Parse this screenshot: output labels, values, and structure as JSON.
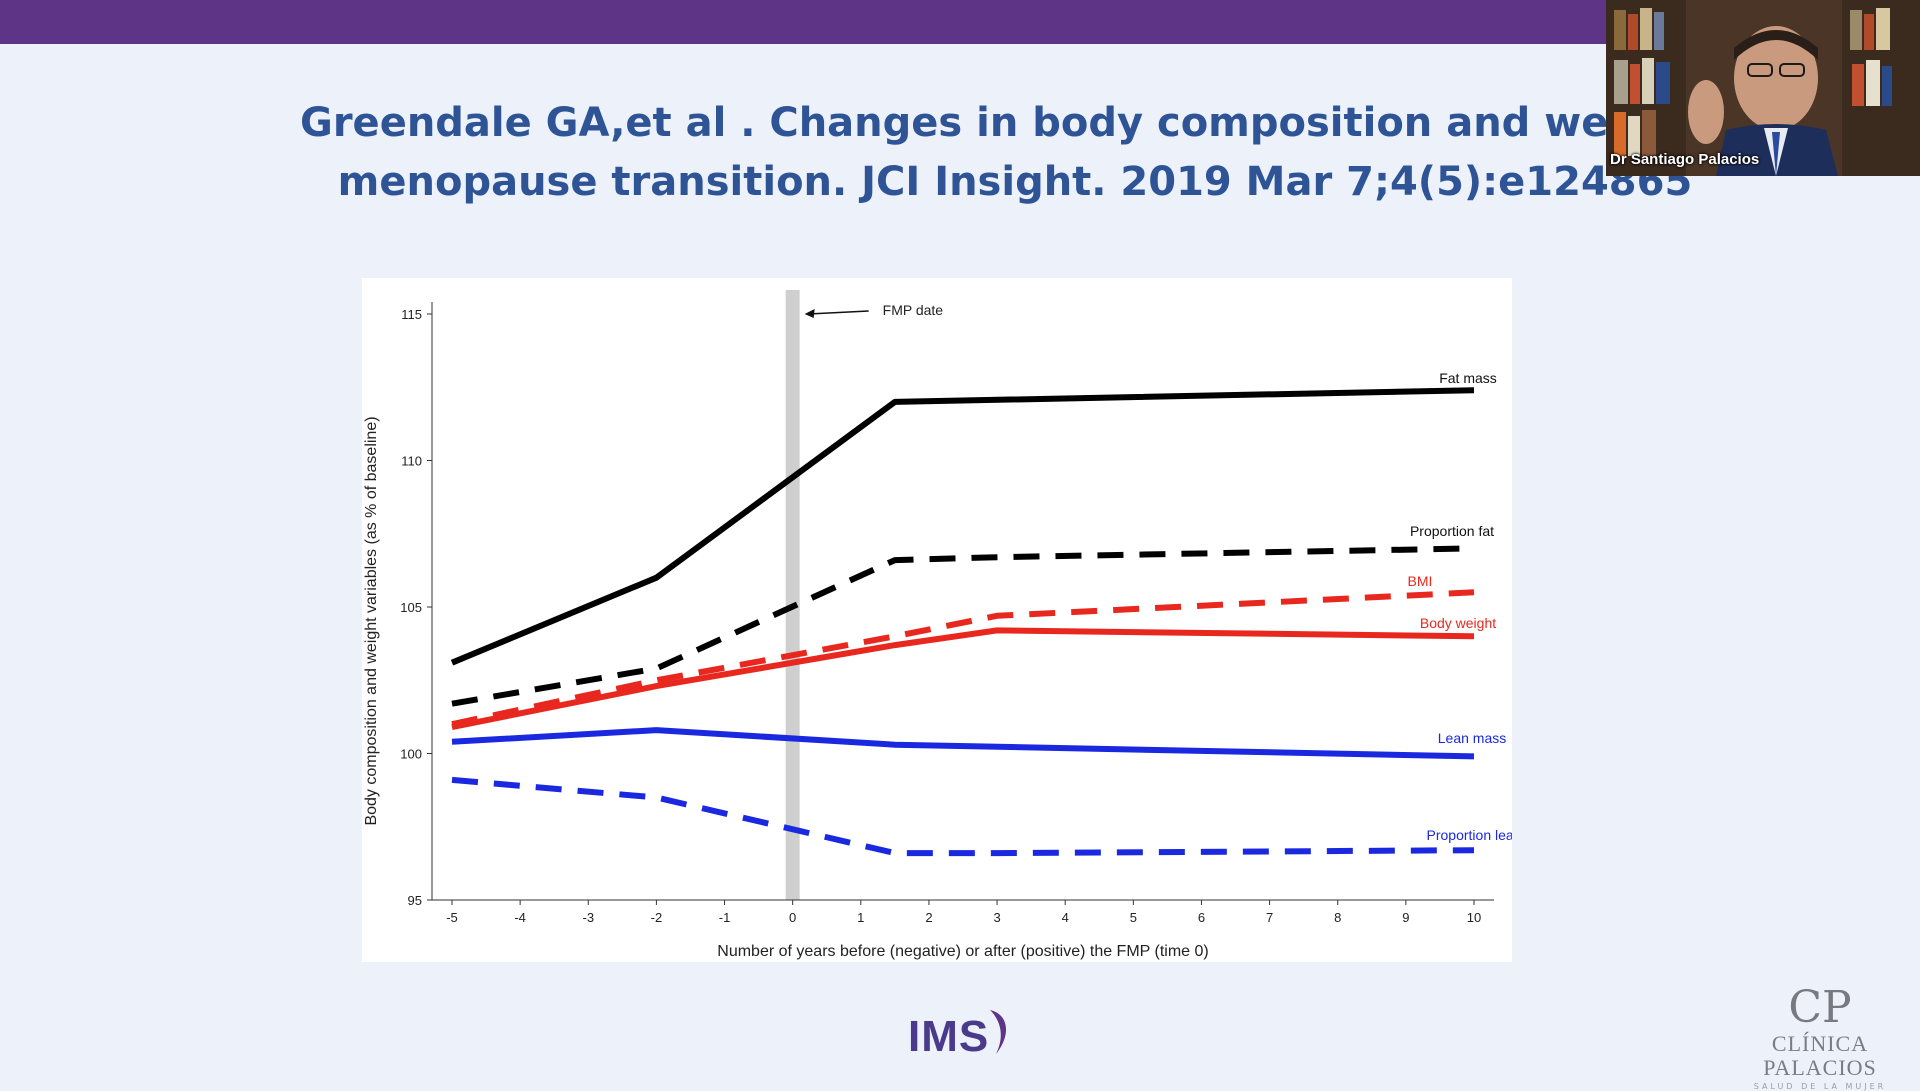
{
  "slide": {
    "title_line1": "Greendale GA,et al . Changes in body composition and weight during the",
    "title_line2": "menopause transition. JCI Insight. 2019 Mar 7;4(5):e124865",
    "accent_color": "#5e3487",
    "title_color": "#2e5496"
  },
  "chart_data": {
    "type": "line",
    "xlabel": "Number of years before (negative) or after (positive) the FMP (time 0)",
    "ylabel": "Body composition and weight variables (as % of baseline)",
    "xlim": [
      -5,
      10
    ],
    "ylim": [
      95,
      115
    ],
    "x_ticks": [
      -5,
      -4,
      -3,
      -2,
      -1,
      0,
      1,
      2,
      3,
      4,
      5,
      6,
      7,
      8,
      9,
      10
    ],
    "y_ticks": [
      95,
      100,
      105,
      110,
      115
    ],
    "grid": false,
    "annotations": [
      {
        "text": "FMP date",
        "x": 0,
        "kind": "vertical-band-with-arrow"
      }
    ],
    "series": [
      {
        "name": "Fat mass",
        "color": "#000000",
        "style": "solid",
        "x": [
          -5,
          -2,
          1.5,
          10
        ],
        "y": [
          103.1,
          106.0,
          112.0,
          112.4
        ]
      },
      {
        "name": "Proportion fat",
        "color": "#000000",
        "style": "dashed",
        "x": [
          -5,
          -2,
          1.5,
          3,
          10
        ],
        "y": [
          101.7,
          102.9,
          106.6,
          106.7,
          107.0
        ]
      },
      {
        "name": "BMI",
        "color": "#e8281e",
        "style": "dashed",
        "x": [
          -5,
          -2,
          1.5,
          3,
          10
        ],
        "y": [
          101.0,
          102.5,
          104.0,
          104.7,
          105.5
        ]
      },
      {
        "name": "Body weight",
        "color": "#e8281e",
        "style": "solid",
        "x": [
          -5,
          -2,
          1.5,
          3,
          10
        ],
        "y": [
          100.9,
          102.3,
          103.7,
          104.2,
          104.0
        ]
      },
      {
        "name": "Lean mass",
        "color": "#1a28e0",
        "style": "solid",
        "x": [
          -5,
          -2,
          1.5,
          10
        ],
        "y": [
          100.4,
          100.8,
          100.3,
          99.9
        ]
      },
      {
        "name": "Proportion lean",
        "color": "#1a28e0",
        "style": "dashed",
        "x": [
          -5,
          -2,
          1.5,
          3,
          10
        ],
        "y": [
          99.1,
          98.5,
          96.6,
          96.6,
          96.7
        ]
      }
    ]
  },
  "logos": {
    "ims": "IMS",
    "clinic_mark": "CP",
    "clinic_name": "CLÍNICA PALACIOS",
    "clinic_sub": "SALUD DE LA MUJER"
  },
  "video": {
    "speaker_name": "Dr Santiago Palacios"
  }
}
